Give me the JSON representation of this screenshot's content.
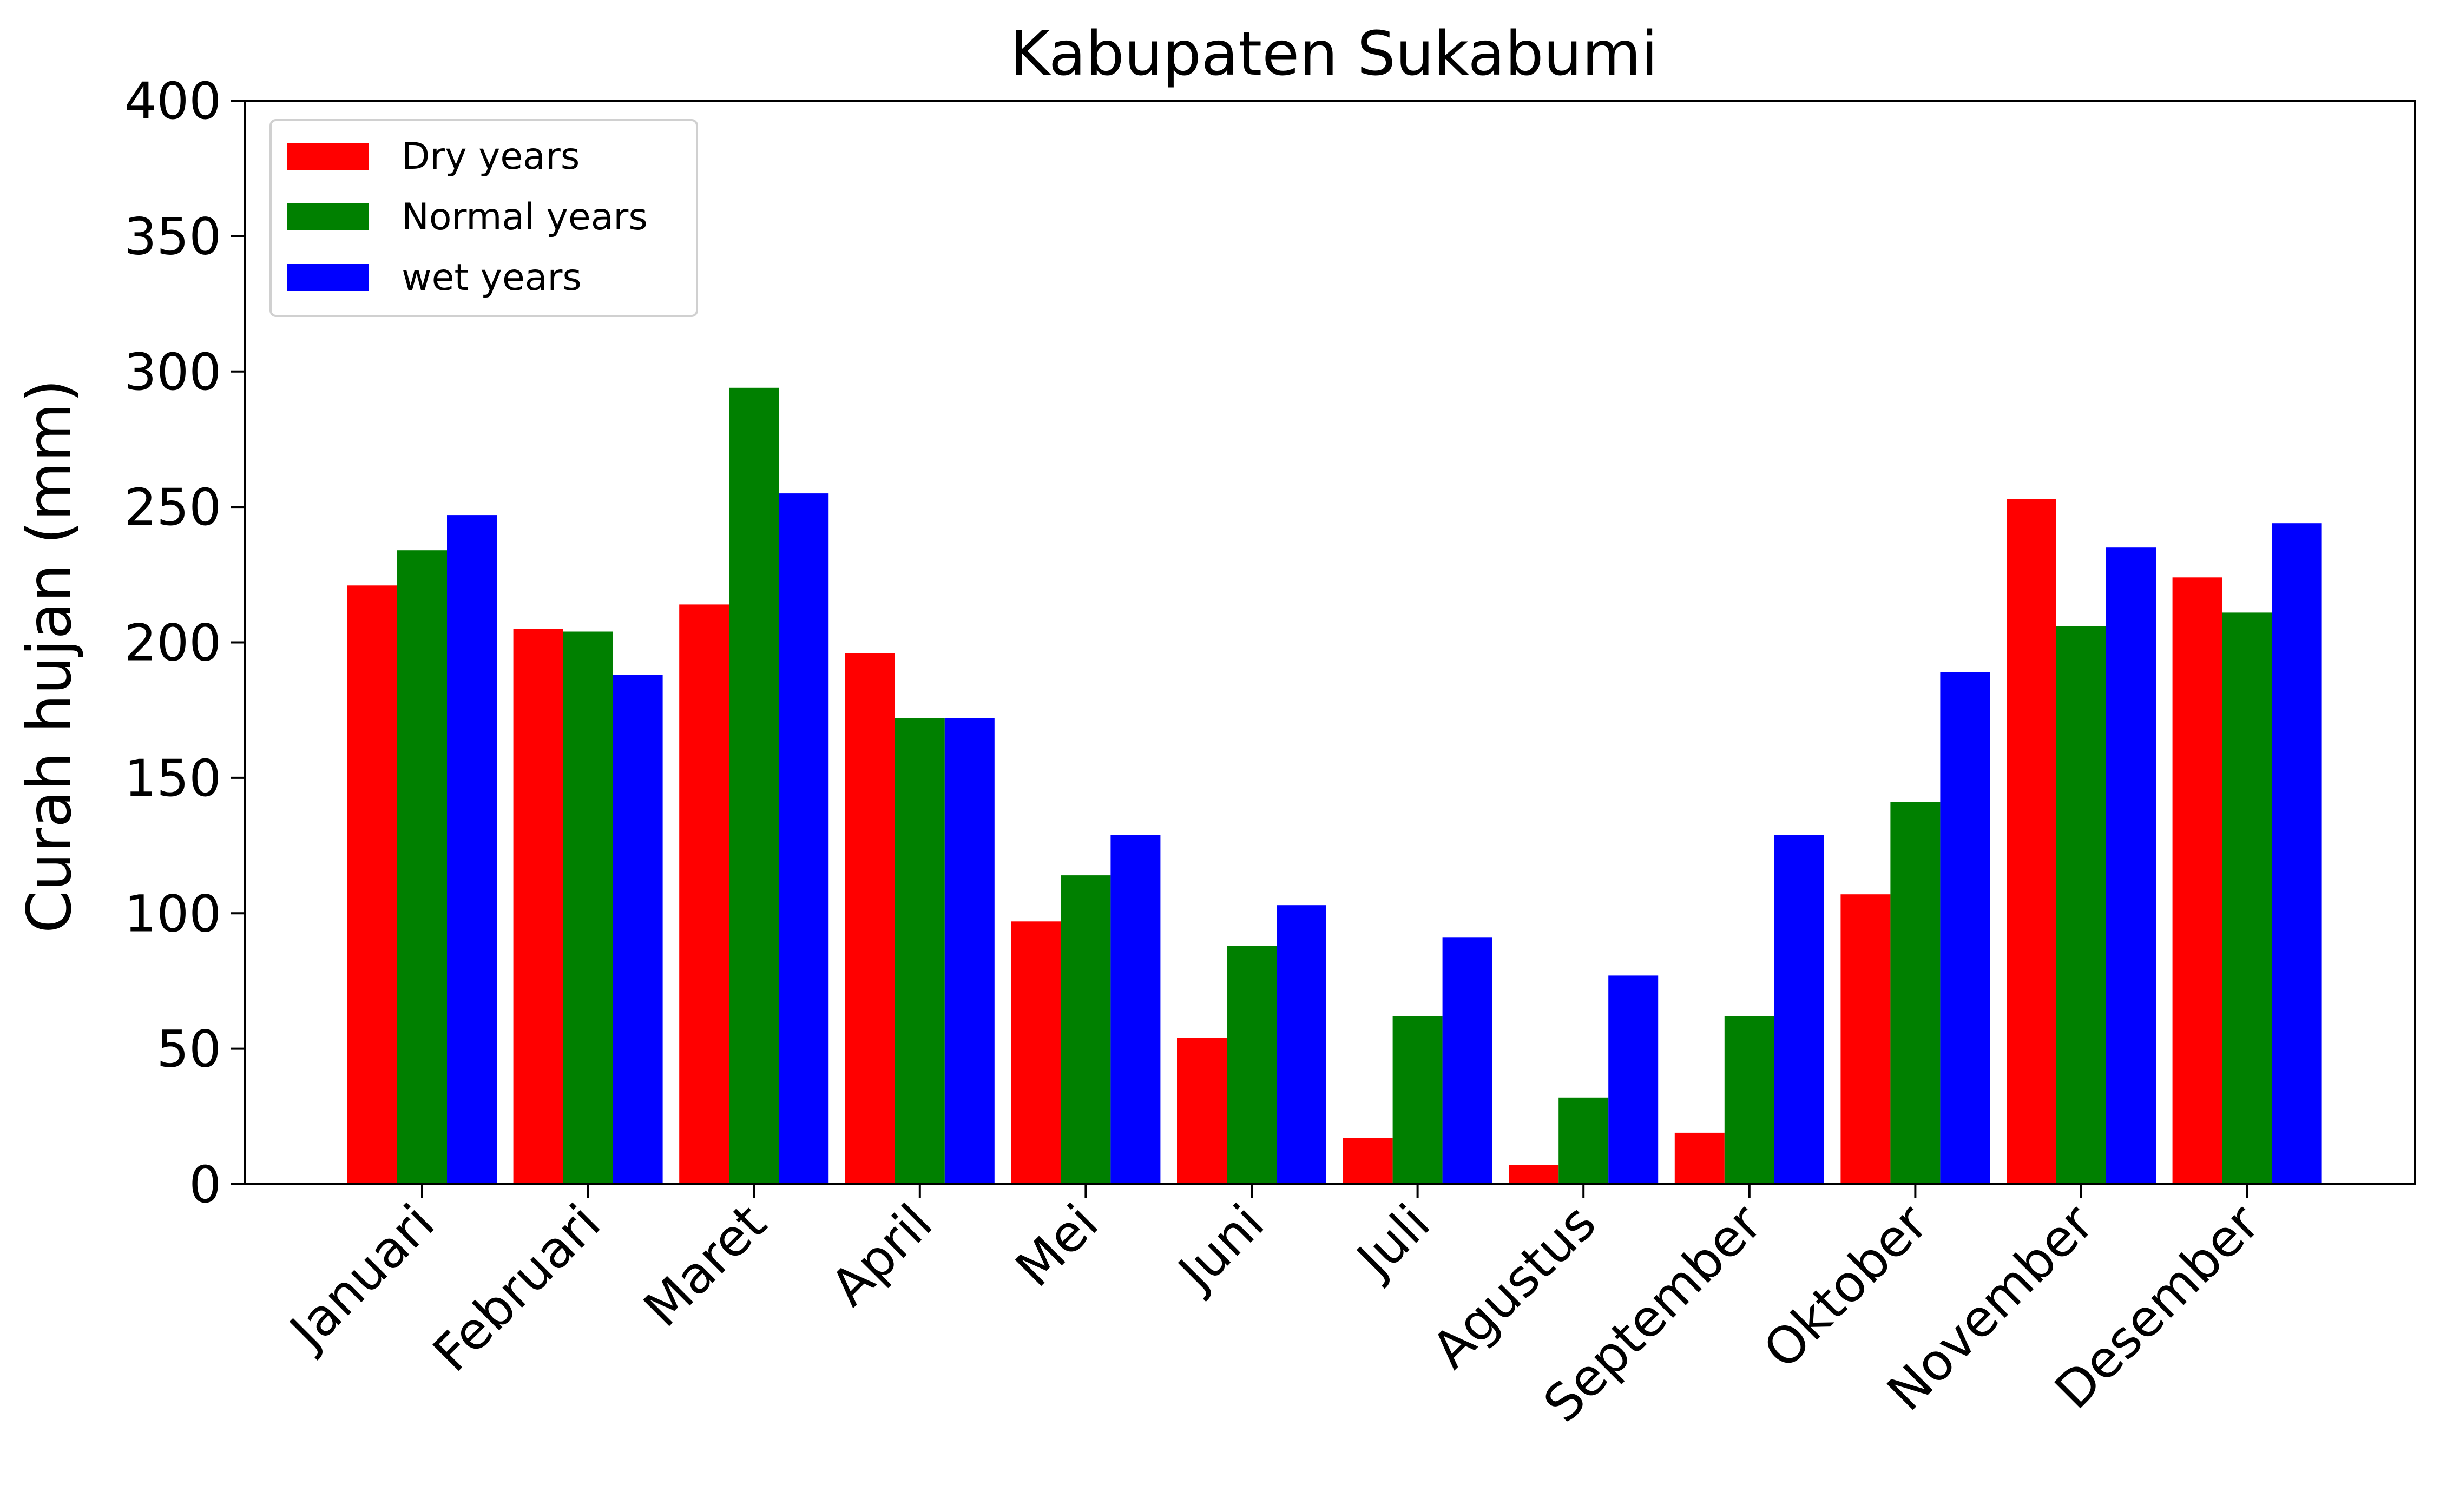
{
  "chart_data": {
    "type": "bar",
    "title": "Kabupaten Sukabumi",
    "xlabel": "",
    "ylabel": "Curah hujan (mm)",
    "ylim": [
      0,
      400
    ],
    "yticks": [
      0,
      50,
      100,
      150,
      200,
      250,
      300,
      350,
      400
    ],
    "categories": [
      "Januari",
      "Februari",
      "Maret",
      "April",
      "Mei",
      "Juni",
      "Juli",
      "Agustus",
      "September",
      "Oktober",
      "November",
      "Desember"
    ],
    "series": [
      {
        "name": "Dry years",
        "color": "#ff0000",
        "values": [
          221,
          205,
          214,
          196,
          97,
          54,
          17,
          7,
          19,
          107,
          253,
          224
        ]
      },
      {
        "name": "Normal years",
        "color": "#008000",
        "values": [
          234,
          204,
          294,
          172,
          114,
          88,
          62,
          32,
          62,
          141,
          206,
          211
        ]
      },
      {
        "name": "wet years",
        "color": "#0000ff",
        "values": [
          247,
          188,
          255,
          172,
          129,
          103,
          91,
          77,
          129,
          189,
          235,
          244
        ]
      }
    ],
    "legend_position": "top-left",
    "grid": false,
    "x_tick_rotation": -45
  }
}
